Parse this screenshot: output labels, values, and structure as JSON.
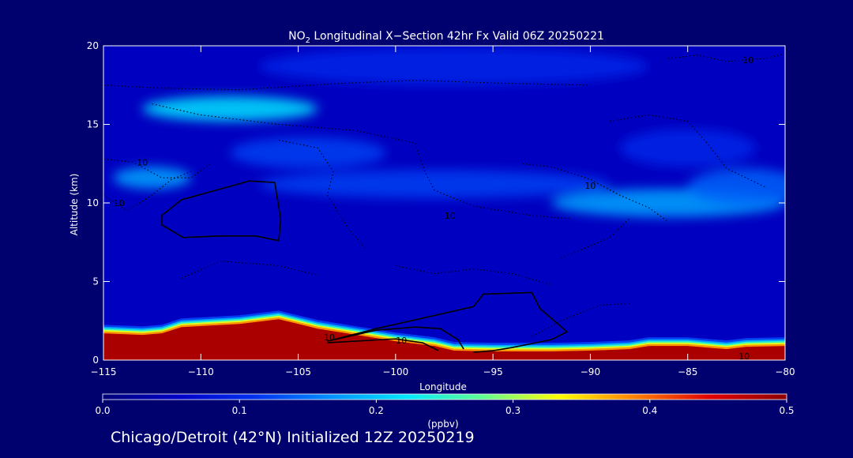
{
  "chart_data": {
    "type": "heatmap",
    "title_prefix": "NO",
    "title_sub": "2",
    "title_rest": " Longitudinal X−Section 42hr  Fx Valid 06Z 20250221",
    "xlabel": "Longitude",
    "ylabel": "Altitude (km)",
    "xlim": [
      -115,
      -80
    ],
    "ylim": [
      0,
      20
    ],
    "x_ticks": [
      -115,
      -110,
      -105,
      -100,
      -95,
      -90,
      -85,
      -80
    ],
    "x_tick_labels": [
      "−115",
      "−110",
      "−105",
      "−100",
      "−95",
      "−90",
      "−85",
      "−80"
    ],
    "y_ticks": [
      0,
      5,
      10,
      15,
      20
    ],
    "y_tick_labels": [
      "0",
      "5",
      "10",
      "15",
      "20"
    ],
    "colorbar": {
      "range": [
        0.0,
        0.5
      ],
      "ticks": [
        0.0,
        0.1,
        0.2,
        0.3,
        0.4,
        0.5
      ],
      "tick_labels": [
        "0.0",
        "0.1",
        "0.2",
        "0.3",
        "0.4",
        "0.5"
      ],
      "units": "(ppbv)",
      "colors": [
        "#00007a",
        "#0000c8",
        "#0030f0",
        "#0090ff",
        "#00e8ff",
        "#60ff90",
        "#ffff00",
        "#ff8000",
        "#e00000",
        "#8c0000"
      ]
    },
    "background_value": 0.05,
    "surface_layer": {
      "x": [
        -115,
        -113,
        -112,
        -111,
        -108,
        -106,
        -104,
        -102,
        -100,
        -98,
        -97,
        -95,
        -92,
        -90,
        -88,
        -87,
        -85,
        -83,
        -82,
        -80
      ],
      "top": [
        1.7,
        1.6,
        1.7,
        2.1,
        2.3,
        2.6,
        2.0,
        1.6,
        1.2,
        0.9,
        0.6,
        0.55,
        0.55,
        0.6,
        0.7,
        0.9,
        0.9,
        0.7,
        0.85,
        0.9
      ],
      "value": 0.48
    },
    "features": [
      {
        "lon": -108.5,
        "alt": 16.0,
        "sx": 4.5,
        "sy": 0.8,
        "value": 0.22
      },
      {
        "lon": -112.5,
        "alt": 11.6,
        "sx": 2.0,
        "sy": 0.7,
        "value": 0.18
      },
      {
        "lon": -104.5,
        "alt": 13.2,
        "sx": 4.0,
        "sy": 1.0,
        "value": 0.12
      },
      {
        "lon": -98.0,
        "alt": 11.2,
        "sx": 9.0,
        "sy": 0.9,
        "value": 0.12
      },
      {
        "lon": -86.0,
        "alt": 10.0,
        "sx": 6.0,
        "sy": 0.9,
        "value": 0.18
      },
      {
        "lon": -82.0,
        "alt": 11.0,
        "sx": 3.0,
        "sy": 1.2,
        "value": 0.14
      },
      {
        "lon": -97.0,
        "alt": 18.7,
        "sx": 10.0,
        "sy": 1.2,
        "value": 0.1
      },
      {
        "lon": -85.0,
        "alt": 13.5,
        "sx": 3.5,
        "sy": 1.2,
        "value": 0.1
      }
    ],
    "solid_contours": [
      {
        "points": [
          [
            -112,
            9.2
          ],
          [
            -111,
            10.2
          ],
          [
            -107.5,
            11.4
          ],
          [
            -106.2,
            11.3
          ],
          [
            -106.1,
            10.5
          ],
          [
            -105.9,
            9.0
          ],
          [
            -106.0,
            7.6
          ],
          [
            -107.2,
            7.9
          ],
          [
            -109.0,
            7.9
          ],
          [
            -110.9,
            7.8
          ],
          [
            -112.0,
            8.6
          ],
          [
            -112,
            9.2
          ]
        ]
      },
      {
        "points": [
          [
            -103.5,
            1.2
          ],
          [
            -101,
            2.0
          ],
          [
            -96.0,
            3.4
          ],
          [
            -95.5,
            4.2
          ],
          [
            -93.0,
            4.3
          ],
          [
            -92.6,
            3.3
          ],
          [
            -91.2,
            1.8
          ],
          [
            -92.0,
            1.3
          ],
          [
            -94.0,
            0.8
          ],
          [
            -95.0,
            0.6
          ],
          [
            -96.0,
            0.5
          ]
        ]
      },
      {
        "points": [
          [
            -103.5,
            1.2
          ],
          [
            -101,
            1.9
          ],
          [
            -99.0,
            2.1
          ],
          [
            -97.7,
            2.0
          ],
          [
            -96.8,
            1.3
          ],
          [
            -96.5,
            0.7
          ]
        ]
      },
      {
        "points": [
          [
            -103.5,
            1.1
          ],
          [
            -100.0,
            1.35
          ],
          [
            -98.6,
            1.1
          ],
          [
            -97.8,
            0.6
          ]
        ]
      }
    ],
    "dotted_contours": [
      {
        "points": [
          [
            -115,
            10.5
          ],
          [
            -113.8,
            9.5
          ],
          [
            -112.5,
            10.5
          ],
          [
            -111.5,
            11.5
          ],
          [
            -110.5,
            12.0
          ]
        ]
      },
      {
        "points": [
          [
            -115,
            12.8
          ],
          [
            -113.5,
            12.6
          ],
          [
            -112,
            11.6
          ],
          [
            -110.5,
            11.6
          ],
          [
            -109.5,
            12.5
          ]
        ]
      },
      {
        "points": [
          [
            -115,
            17.5
          ],
          [
            -112,
            17.3
          ],
          [
            -108,
            17.2
          ],
          [
            -103,
            17.6
          ],
          [
            -99,
            17.8
          ],
          [
            -94,
            17.6
          ],
          [
            -90,
            17.5
          ]
        ]
      },
      {
        "points": [
          [
            -112.5,
            16.3
          ],
          [
            -110,
            15.6
          ],
          [
            -106,
            15.0
          ],
          [
            -102,
            14.6
          ],
          [
            -99,
            13.8
          ],
          [
            -98.5,
            12.0
          ],
          [
            -98.0,
            10.8
          ],
          [
            -96.0,
            9.8
          ],
          [
            -93,
            9.2
          ],
          [
            -91,
            9.0
          ]
        ]
      },
      {
        "points": [
          [
            -106,
            14.0
          ],
          [
            -104,
            13.5
          ],
          [
            -103.2,
            12.0
          ],
          [
            -103.5,
            10.5
          ],
          [
            -102.5,
            8.5
          ],
          [
            -101.5,
            7.0
          ]
        ]
      },
      {
        "points": [
          [
            -93.5,
            12.5
          ],
          [
            -92,
            12.3
          ],
          [
            -90,
            11.5
          ],
          [
            -88.5,
            10.5
          ],
          [
            -87,
            9.7
          ],
          [
            -86,
            8.8
          ]
        ]
      },
      {
        "points": [
          [
            -89,
            15.2
          ],
          [
            -87,
            15.6
          ],
          [
            -85,
            15.2
          ],
          [
            -84,
            13.8
          ],
          [
            -83,
            12.2
          ],
          [
            -82,
            11.6
          ],
          [
            -81,
            11.0
          ]
        ]
      },
      {
        "points": [
          [
            -91.5,
            6.5
          ],
          [
            -90.5,
            7.0
          ],
          [
            -89,
            7.8
          ],
          [
            -88,
            9.0
          ]
        ]
      },
      {
        "points": [
          [
            -86,
            19.2
          ],
          [
            -84.5,
            19.4
          ],
          [
            -83,
            19.0
          ],
          [
            -81,
            19.2
          ],
          [
            -80,
            19.5
          ]
        ]
      },
      {
        "points": [
          [
            -100,
            6.0
          ],
          [
            -98,
            5.5
          ],
          [
            -96,
            5.8
          ],
          [
            -94,
            5.5
          ],
          [
            -92,
            4.8
          ]
        ]
      },
      {
        "points": [
          [
            -111,
            5.2
          ],
          [
            -109,
            6.3
          ],
          [
            -106,
            6.0
          ],
          [
            -104,
            5.4
          ]
        ]
      },
      {
        "points": [
          [
            -93,
            1.5
          ],
          [
            -91.5,
            2.5
          ],
          [
            -89.5,
            3.5
          ],
          [
            -88,
            3.6
          ]
        ]
      }
    ],
    "contour_labels": [
      {
        "text": "10",
        "x": -113.0,
        "y": 12.6
      },
      {
        "text": "10",
        "x": -114.2,
        "y": 10.0
      },
      {
        "text": "10",
        "x": -90.0,
        "y": 11.1
      },
      {
        "text": "10",
        "x": -97.2,
        "y": 9.2
      },
      {
        "text": "10",
        "x": -81.9,
        "y": 19.1
      },
      {
        "text": "10",
        "x": -103.4,
        "y": 1.45
      },
      {
        "text": "10",
        "x": -99.7,
        "y": 1.25
      },
      {
        "text": "10",
        "x": -82.1,
        "y": 0.25
      }
    ]
  },
  "footer": {
    "caption": "Chicago/Detroit (42°N) Initialized 12Z 20250219"
  }
}
